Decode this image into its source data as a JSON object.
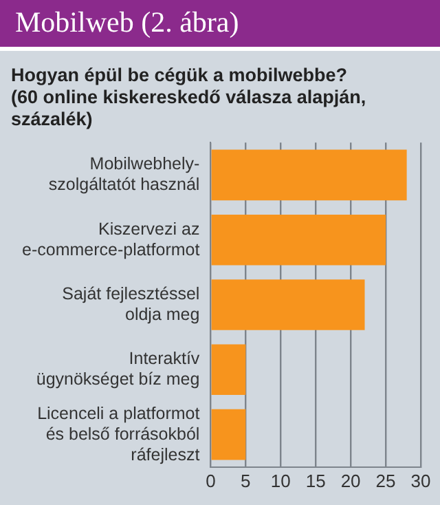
{
  "chart_data": {
    "type": "bar",
    "orientation": "horizontal",
    "title": "Mobilweb (2. ábra)",
    "subtitle": "Hogyan épül be cégük a mobilwebbe?\n(60 online kiskereskedő válasza alapján,\nszázalék)",
    "categories": [
      "Mobilwebhely-\nszolgáltatót használ",
      "Kiszervezi az\ne-commerce-platformot",
      "Saját fejlesztéssel\noldja meg",
      "Interaktív\nügynökséget bíz meg",
      "Licenceli a platformot\nés belső forrásokból\nráfejleszt"
    ],
    "values": [
      28,
      25,
      22,
      5,
      5
    ],
    "color": "#f7941d",
    "xlim": [
      0,
      30
    ],
    "xticks": [
      0,
      5,
      10,
      15,
      20,
      25,
      30
    ],
    "grid": "x",
    "legend": false
  }
}
